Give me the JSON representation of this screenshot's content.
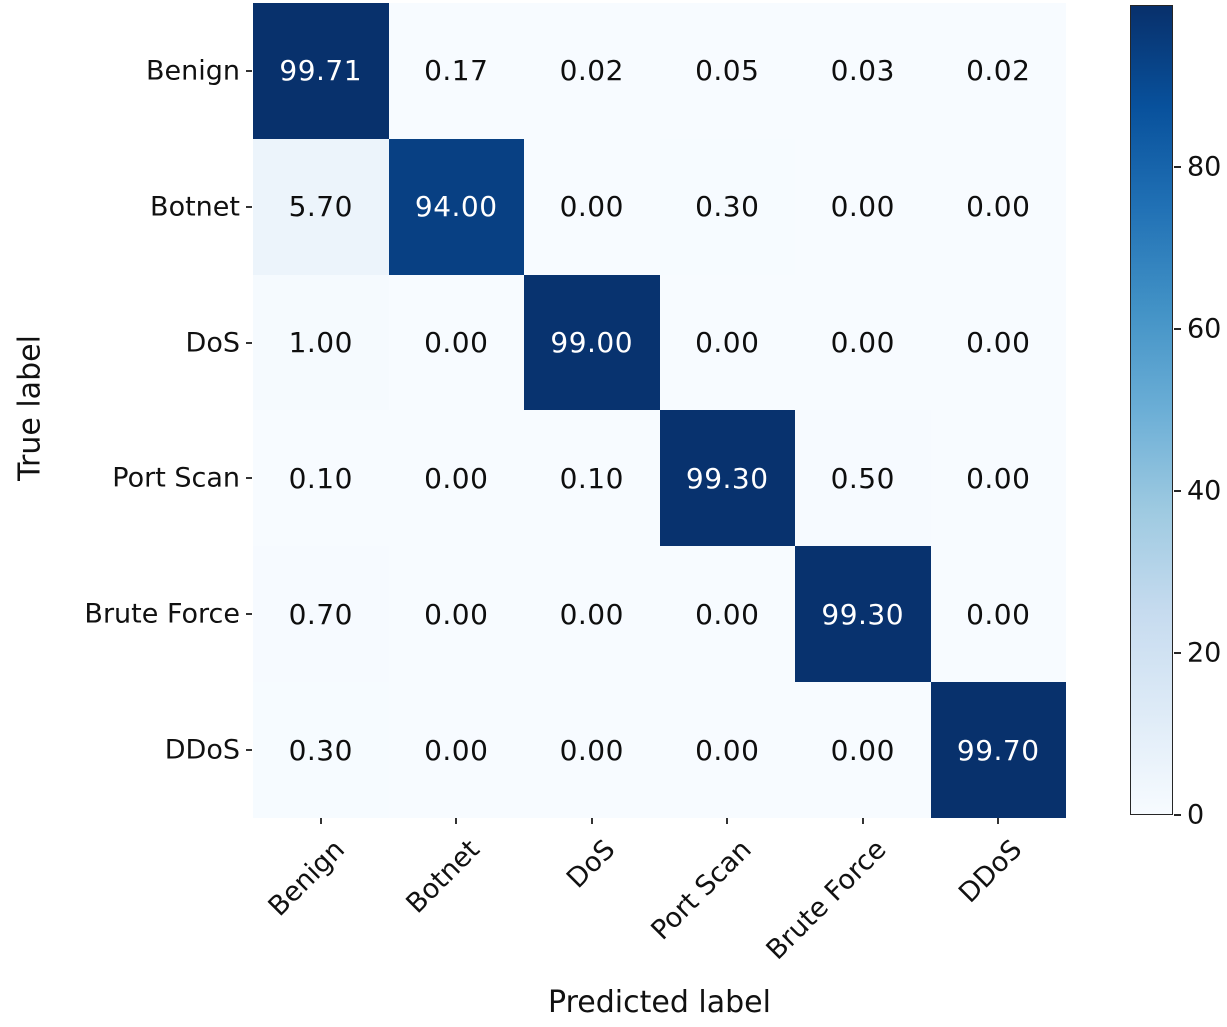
{
  "chart_data": {
    "type": "heatmap",
    "title": "",
    "xlabel": "Predicted label",
    "ylabel": "True label",
    "categories": [
      "Benign",
      "Botnet",
      "DoS",
      "Port Scan",
      "Brute Force",
      "DDoS"
    ],
    "matrix": [
      [
        99.71,
        0.17,
        0.02,
        0.05,
        0.03,
        0.02
      ],
      [
        5.7,
        94.0,
        0.0,
        0.3,
        0.0,
        0.0
      ],
      [
        1.0,
        0.0,
        99.0,
        0.0,
        0.0,
        0.0
      ],
      [
        0.1,
        0.0,
        0.1,
        99.3,
        0.5,
        0.0
      ],
      [
        0.7,
        0.0,
        0.0,
        0.0,
        99.3,
        0.0
      ],
      [
        0.3,
        0.0,
        0.0,
        0.0,
        0.0,
        99.7
      ]
    ],
    "value_decimals": 2,
    "colormap": {
      "name": "Blues",
      "stops": [
        "#f7fbff",
        "#deebf7",
        "#c6dbef",
        "#9ecae1",
        "#6baed6",
        "#4292c6",
        "#2171b5",
        "#08519c",
        "#08306b"
      ]
    },
    "colorbar": {
      "min": 0,
      "max": 100,
      "ticks": [
        0,
        20,
        40,
        60,
        80
      ],
      "position": "right"
    },
    "text_color_threshold": 50,
    "cell_text_dark": "#0e0e0e",
    "cell_text_light": "#ffffff",
    "legend_position": "none",
    "grid": false
  }
}
